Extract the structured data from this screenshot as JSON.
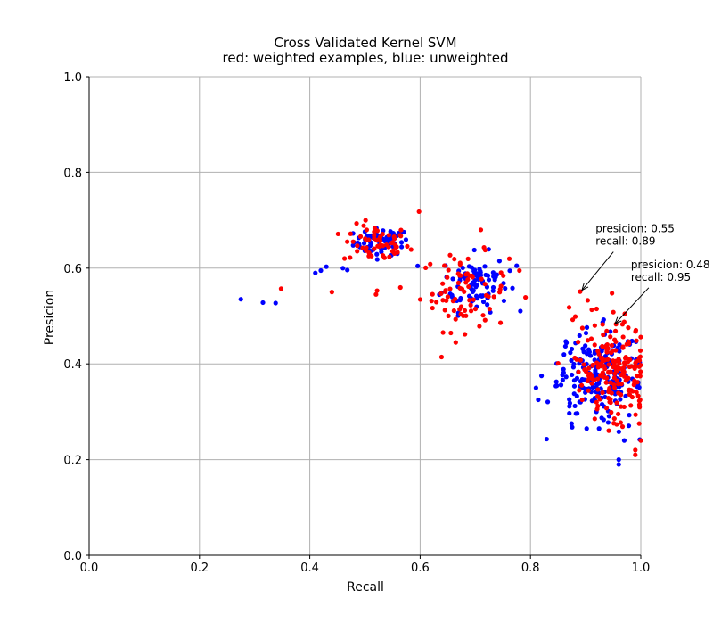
{
  "chart_data": {
    "type": "scatter",
    "title": "Cross Validated Kernel SVM",
    "subtitle": "red: weighted examples, blue: unweighted",
    "xlabel": "Recall",
    "ylabel": "Presicion",
    "xlim": [
      0.0,
      1.0
    ],
    "ylim": [
      0.0,
      1.0
    ],
    "x_ticks": [
      "0.0",
      "0.2",
      "0.4",
      "0.6",
      "0.8",
      "1.0"
    ],
    "y_ticks": [
      "0.0",
      "0.2",
      "0.4",
      "0.6",
      "0.8",
      "1.0"
    ],
    "grid": true,
    "colors": {
      "weighted": "#ff0000",
      "unweighted": "#0000ff",
      "grid": "#b0b0b0"
    },
    "clusters": [
      {
        "color": "unweighted",
        "cx": 0.53,
        "cy": 0.655,
        "sx": 0.025,
        "sy": 0.014,
        "n": 70
      },
      {
        "color": "weighted",
        "cx": 0.52,
        "cy": 0.65,
        "sx": 0.03,
        "sy": 0.02,
        "n": 60
      },
      {
        "color": "unweighted",
        "cx": 0.7,
        "cy": 0.57,
        "sx": 0.03,
        "sy": 0.03,
        "n": 90
      },
      {
        "color": "weighted",
        "cx": 0.68,
        "cy": 0.55,
        "sx": 0.04,
        "sy": 0.04,
        "n": 80
      },
      {
        "color": "unweighted",
        "cx": 0.92,
        "cy": 0.37,
        "sx": 0.04,
        "sy": 0.05,
        "n": 200
      },
      {
        "color": "weighted",
        "cx": 0.95,
        "cy": 0.38,
        "sx": 0.035,
        "sy": 0.06,
        "n": 200
      }
    ],
    "extra_points": [
      {
        "color": "unweighted",
        "points": [
          [
            0.275,
            0.535
          ],
          [
            0.315,
            0.528
          ],
          [
            0.338,
            0.527
          ],
          [
            0.41,
            0.59
          ],
          [
            0.42,
            0.595
          ],
          [
            0.43,
            0.603
          ],
          [
            0.46,
            0.6
          ],
          [
            0.468,
            0.596
          ],
          [
            0.775,
            0.605
          ],
          [
            0.82,
            0.375
          ],
          [
            0.81,
            0.35
          ],
          [
            0.96,
            0.19
          ],
          [
            0.96,
            0.2
          ],
          [
            0.97,
            0.24
          ]
        ]
      },
      {
        "color": "weighted",
        "points": [
          [
            0.348,
            0.557
          ],
          [
            0.44,
            0.55
          ],
          [
            0.52,
            0.545
          ],
          [
            0.522,
            0.553
          ],
          [
            0.598,
            0.718
          ],
          [
            0.71,
            0.68
          ],
          [
            0.78,
            0.595
          ],
          [
            0.87,
            0.518
          ],
          [
            0.89,
            0.551
          ],
          [
            0.955,
            0.483
          ],
          [
            0.99,
            0.22
          ],
          [
            0.99,
            0.21
          ],
          [
            1.0,
            0.24
          ]
        ]
      }
    ],
    "annotations": [
      {
        "lines": [
          "presicion: 0.55",
          "recall: 0.89"
        ],
        "point": [
          0.89,
          0.55
        ],
        "text_at": [
          0.918,
          0.675
        ]
      },
      {
        "lines": [
          "presicion: 0.48",
          "recall: 0.95"
        ],
        "point": [
          0.95,
          0.48
        ],
        "text_at": [
          0.982,
          0.6
        ]
      }
    ]
  }
}
